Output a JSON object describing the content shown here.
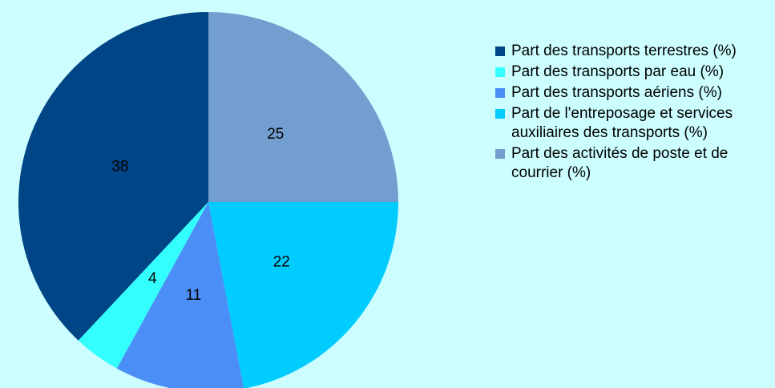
{
  "chart_data": {
    "type": "pie",
    "categories": [
      "Part des transports terrestres (%)",
      "Part des transports par eau (%)",
      "Part des transports aériens (%)",
      "Part de l'entreposage et services auxiliaires des transports (%)",
      "Part des activités de poste et de courrier (%)"
    ],
    "values": [
      38,
      4,
      11,
      22,
      25
    ],
    "colors": [
      "#004586",
      "#33ffff",
      "#4b8ef5",
      "#00ccff",
      "#729fcf"
    ],
    "direction": "counterclockwise",
    "legend": "right"
  }
}
